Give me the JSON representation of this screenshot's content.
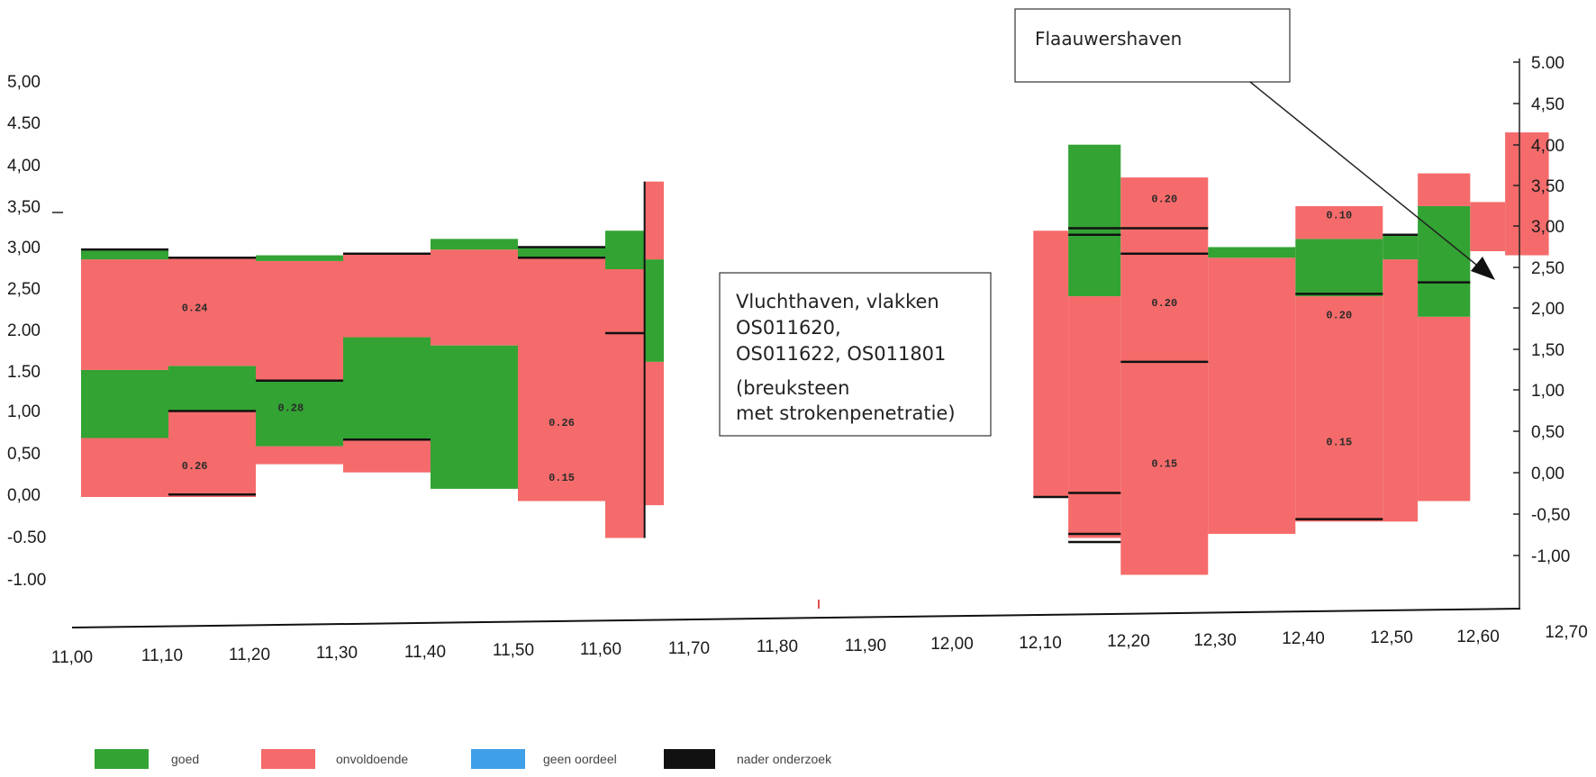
{
  "chart_data": {
    "type": "bar",
    "title": "",
    "xlabel": "",
    "ylabel": "",
    "xlim": [
      11.0,
      12.7
    ],
    "ylim": [
      -1.5,
      5.0
    ],
    "x_ticks": [
      "11,00",
      "11,10",
      "11,20",
      "11,30",
      "11,40",
      "11,50",
      "11,60",
      "11,70",
      "11,80",
      "11,90",
      "12,00",
      "12,10",
      "12,20",
      "12,30",
      "12,40",
      "12,50",
      "12,60",
      "12,70"
    ],
    "y_ticks_left": [
      "5,00",
      "4.50",
      "4,00",
      "3,50",
      "3,00",
      "2,50",
      "2.00",
      "1.50",
      "1,00",
      "0,50",
      "0,00",
      "-0.50",
      "-1.00"
    ],
    "y_ticks_right": [
      "5.00",
      "4,50",
      "4,00",
      "3,50",
      "3,00",
      "2,50",
      "2,00",
      "1,50",
      "1,00",
      "0,50",
      "0,00",
      "-0,50",
      "-1,00"
    ],
    "legend": [
      {
        "name": "goed",
        "color": "#33a333"
      },
      {
        "name": "onvoldoende",
        "color": "#f56b6b"
      },
      {
        "name": "geen oordeel",
        "color": "#3fa0e8"
      },
      {
        "name": "nader onderzoek",
        "color": "#111111"
      }
    ],
    "segments": [
      {
        "x0": 11.0,
        "x1": 11.1,
        "y0": 0.0,
        "y1": 0.72,
        "status": "onvoldoende"
      },
      {
        "x0": 11.0,
        "x1": 11.1,
        "y0": 0.72,
        "y1": 1.55,
        "status": "goed"
      },
      {
        "x0": 11.0,
        "x1": 11.1,
        "y0": 1.55,
        "y1": 2.9,
        "status": "onvoldoende"
      },
      {
        "x0": 11.0,
        "x1": 11.1,
        "y0": 2.9,
        "y1": 3.02,
        "status": "goed"
      },
      {
        "x0": 11.1,
        "x1": 11.2,
        "y0": 0.0,
        "y1": 1.05,
        "status": "onvoldoende"
      },
      {
        "x0": 11.1,
        "x1": 11.2,
        "y0": 1.05,
        "y1": 1.6,
        "status": "goed"
      },
      {
        "x0": 11.1,
        "x1": 11.2,
        "y0": 1.6,
        "y1": 2.92,
        "status": "onvoldoende"
      },
      {
        "x0": 11.2,
        "x1": 11.3,
        "y0": 0.4,
        "y1": 0.62,
        "status": "onvoldoende"
      },
      {
        "x0": 11.2,
        "x1": 11.3,
        "y0": 0.62,
        "y1": 1.42,
        "status": "goed"
      },
      {
        "x0": 11.2,
        "x1": 11.3,
        "y0": 1.42,
        "y1": 2.88,
        "status": "onvoldoende"
      },
      {
        "x0": 11.2,
        "x1": 11.3,
        "y0": 2.88,
        "y1": 2.95,
        "status": "goed"
      },
      {
        "x0": 11.3,
        "x1": 11.4,
        "y0": 0.3,
        "y1": 0.7,
        "status": "onvoldoende"
      },
      {
        "x0": 11.3,
        "x1": 11.4,
        "y0": 0.7,
        "y1": 1.95,
        "status": "goed"
      },
      {
        "x0": 11.3,
        "x1": 11.4,
        "y0": 1.95,
        "y1": 2.97,
        "status": "onvoldoende"
      },
      {
        "x0": 11.4,
        "x1": 11.5,
        "y0": 0.1,
        "y1": 1.85,
        "status": "goed"
      },
      {
        "x0": 11.4,
        "x1": 11.5,
        "y0": 1.85,
        "y1": 3.02,
        "status": "onvoldoende"
      },
      {
        "x0": 11.4,
        "x1": 11.5,
        "y0": 3.02,
        "y1": 3.15,
        "status": "goed"
      },
      {
        "x0": 11.5,
        "x1": 11.6,
        "y0": -0.05,
        "y1": 2.92,
        "status": "onvoldoende"
      },
      {
        "x0": 11.5,
        "x1": 11.6,
        "y0": 2.92,
        "y1": 3.05,
        "status": "goed"
      },
      {
        "x0": 11.6,
        "x1": 11.645,
        "y0": -0.5,
        "y1": 2.78,
        "status": "onvoldoende"
      },
      {
        "x0": 11.6,
        "x1": 11.645,
        "y0": 2.78,
        "y1": 3.25,
        "status": "goed"
      },
      {
        "x0": 11.645,
        "x1": 11.667,
        "y0": -0.1,
        "y1": 1.65,
        "status": "onvoldoende"
      },
      {
        "x0": 11.645,
        "x1": 11.667,
        "y0": 1.65,
        "y1": 2.9,
        "status": "goed"
      },
      {
        "x0": 11.645,
        "x1": 11.667,
        "y0": 2.9,
        "y1": 3.85,
        "status": "onvoldoende"
      },
      {
        "x0": 12.09,
        "x1": 12.13,
        "y0": 0.0,
        "y1": 3.25,
        "status": "onvoldoende"
      },
      {
        "x0": 12.13,
        "x1": 12.19,
        "y0": -0.5,
        "y1": 2.45,
        "status": "onvoldoende"
      },
      {
        "x0": 12.13,
        "x1": 12.19,
        "y0": 2.45,
        "y1": 4.3,
        "status": "goed"
      },
      {
        "x0": 12.19,
        "x1": 12.29,
        "y0": -0.95,
        "y1": 3.9,
        "status": "onvoldoende"
      },
      {
        "x0": 12.29,
        "x1": 12.39,
        "y0": -0.45,
        "y1": 2.92,
        "status": "onvoldoende"
      },
      {
        "x0": 12.29,
        "x1": 12.39,
        "y0": 2.92,
        "y1": 3.05,
        "status": "goed"
      },
      {
        "x0": 12.39,
        "x1": 12.49,
        "y0": -0.3,
        "y1": 2.45,
        "status": "onvoldoende"
      },
      {
        "x0": 12.39,
        "x1": 12.49,
        "y0": 2.45,
        "y1": 3.15,
        "status": "goed"
      },
      {
        "x0": 12.39,
        "x1": 12.49,
        "y0": 3.15,
        "y1": 3.55,
        "status": "onvoldoende"
      },
      {
        "x0": 12.49,
        "x1": 12.53,
        "y0": -0.3,
        "y1": 2.9,
        "status": "onvoldoende"
      },
      {
        "x0": 12.49,
        "x1": 12.53,
        "y0": 2.9,
        "y1": 3.2,
        "status": "goed"
      },
      {
        "x0": 12.53,
        "x1": 12.59,
        "y0": -0.05,
        "y1": 2.2,
        "status": "onvoldoende"
      },
      {
        "x0": 12.53,
        "x1": 12.59,
        "y0": 2.2,
        "y1": 3.55,
        "status": "goed"
      },
      {
        "x0": 12.53,
        "x1": 12.59,
        "y0": 3.55,
        "y1": 3.95,
        "status": "onvoldoende"
      },
      {
        "x0": 12.59,
        "x1": 12.63,
        "y0": 3.0,
        "y1": 3.6,
        "status": "onvoldoende"
      },
      {
        "x0": 12.63,
        "x1": 12.68,
        "y0": 2.95,
        "y1": 4.45,
        "status": "onvoldoende"
      }
    ],
    "black_lines": [
      {
        "x0": 11.0,
        "x1": 11.1,
        "y": 3.02
      },
      {
        "x0": 11.1,
        "x1": 11.2,
        "y": 2.92
      },
      {
        "x0": 11.1,
        "x1": 11.2,
        "y": 1.05
      },
      {
        "x0": 11.1,
        "x1": 11.2,
        "y": 0.03
      },
      {
        "x0": 11.2,
        "x1": 11.3,
        "y": 1.42
      },
      {
        "x0": 11.3,
        "x1": 11.4,
        "y": 0.7
      },
      {
        "x0": 11.3,
        "x1": 11.4,
        "y": 2.97
      },
      {
        "x0": 11.5,
        "x1": 11.6,
        "y": 2.92
      },
      {
        "x0": 11.5,
        "x1": 11.6,
        "y": 3.05
      },
      {
        "x0": 11.6,
        "x1": 11.645,
        "y": 2.0
      },
      {
        "x0": 12.09,
        "x1": 12.13,
        "y": 0.0
      },
      {
        "x0": 12.13,
        "x1": 12.19,
        "y": 0.05
      },
      {
        "x0": 12.13,
        "x1": 12.19,
        "y": -0.45
      },
      {
        "x0": 12.13,
        "x1": 12.19,
        "y": -0.55
      },
      {
        "x0": 12.13,
        "x1": 12.19,
        "y": 3.2
      },
      {
        "x0": 12.13,
        "x1": 12.19,
        "y": 3.28
      },
      {
        "x0": 12.19,
        "x1": 12.29,
        "y": 1.65
      },
      {
        "x0": 12.19,
        "x1": 12.29,
        "y": 2.97
      },
      {
        "x0": 12.19,
        "x1": 12.29,
        "y": 3.28
      },
      {
        "x0": 12.39,
        "x1": 12.49,
        "y": 2.48
      },
      {
        "x0": 12.39,
        "x1": 12.49,
        "y": -0.27
      },
      {
        "x0": 12.49,
        "x1": 12.53,
        "y": 3.2
      },
      {
        "x0": 12.53,
        "x1": 12.59,
        "y": 2.62
      }
    ],
    "value_labels": [
      {
        "text": "0.24",
        "x": 11.13,
        "y": 2.27
      },
      {
        "text": "0.26",
        "x": 11.13,
        "y": 0.34
      },
      {
        "text": "0.28",
        "x": 11.24,
        "y": 1.05
      },
      {
        "text": "0.26",
        "x": 11.55,
        "y": 0.87
      },
      {
        "text": "0.15",
        "x": 11.55,
        "y": 0.2
      },
      {
        "text": "0.20",
        "x": 12.24,
        "y": 3.6
      },
      {
        "text": "0.20",
        "x": 12.24,
        "y": 2.33
      },
      {
        "text": "0.15",
        "x": 12.24,
        "y": 0.37
      },
      {
        "text": "0.10",
        "x": 12.44,
        "y": 3.4
      },
      {
        "text": "0.20",
        "x": 12.44,
        "y": 2.18
      },
      {
        "text": "0.15",
        "x": 12.44,
        "y": 0.63
      }
    ]
  },
  "annotations": {
    "vluchthaven_lines": [
      "Vluchthaven, vlakken",
      "OS011620,",
      "OS011622, OS011801",
      "(breuksteen",
      "met strokenpenetratie)"
    ],
    "flaauwershaven": "Flaauwershaven"
  }
}
